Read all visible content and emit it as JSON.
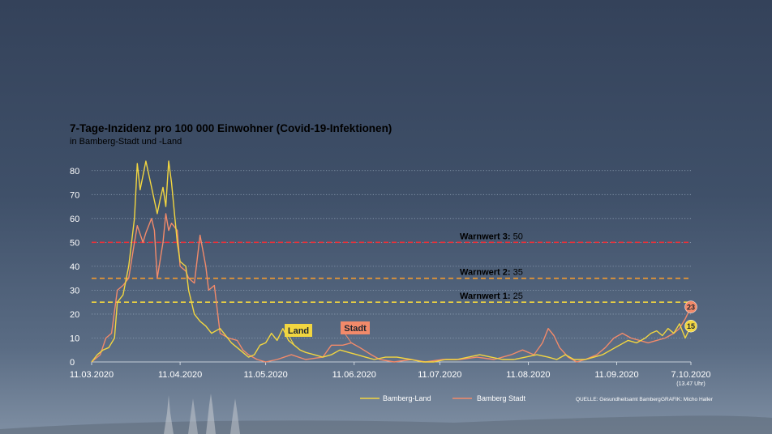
{
  "colors": {
    "land": "#f2d640",
    "stadt": "#f28a6a",
    "warn3": "#e8323a",
    "warn2": "#f29a2e",
    "warn1": "#f2d640",
    "grid": "#9fb0c4"
  },
  "chart_data": {
    "type": "line",
    "title": "7-Tage-Inzidenz pro 100 000 Einwohner (Covid-19-Infektionen)",
    "subtitle": "in Bamberg-Stadt und -Land",
    "ylim": [
      0,
      85
    ],
    "yticks": [
      0,
      10,
      20,
      30,
      40,
      50,
      60,
      70,
      80
    ],
    "xlim": [
      "2020-03-11",
      "2020-10-07"
    ],
    "xticks": [
      {
        "date": "2020-03-11",
        "label": "11.03.2020"
      },
      {
        "date": "2020-04-11",
        "label": "11.04.2020"
      },
      {
        "date": "2020-05-11",
        "label": "11.05.2020"
      },
      {
        "date": "2020-06-11",
        "label": "11.06.2020"
      },
      {
        "date": "2020-07-11",
        "label": "11.07.2020"
      },
      {
        "date": "2020-08-11",
        "label": "11.08.2020"
      },
      {
        "date": "2020-09-11",
        "label": "11.09.2020"
      },
      {
        "date": "2020-10-07",
        "label": "7.10.2020"
      }
    ],
    "last_tick_note": "(13.47 Uhr)",
    "grid": "horizontal dotted",
    "thresholds": [
      {
        "name": "Warnwert 3:",
        "value": 50,
        "label_value": "50",
        "color": "#e8323a"
      },
      {
        "name": "Warnwert 2:",
        "value": 35,
        "label_value": "35",
        "color": "#f29a2e"
      },
      {
        "name": "Warnwert 1:",
        "value": 25,
        "label_value": "25",
        "color": "#f2d640"
      }
    ],
    "legend_position": "bottom-right",
    "series": [
      {
        "name": "Bamberg-Land",
        "inline_label": "Land",
        "end_label": "15",
        "color": "#f2d640",
        "points": [
          [
            "2020-03-11",
            0
          ],
          [
            "2020-03-13",
            3
          ],
          [
            "2020-03-15",
            5
          ],
          [
            "2020-03-17",
            6
          ],
          [
            "2020-03-19",
            10
          ],
          [
            "2020-03-20",
            25
          ],
          [
            "2020-03-22",
            28
          ],
          [
            "2020-03-24",
            40
          ],
          [
            "2020-03-26",
            60
          ],
          [
            "2020-03-27",
            83
          ],
          [
            "2020-03-28",
            72
          ],
          [
            "2020-03-30",
            84
          ],
          [
            "2020-04-01",
            73
          ],
          [
            "2020-04-03",
            62
          ],
          [
            "2020-04-04",
            68
          ],
          [
            "2020-04-05",
            73
          ],
          [
            "2020-04-06",
            65
          ],
          [
            "2020-04-07",
            84
          ],
          [
            "2020-04-08",
            75
          ],
          [
            "2020-04-10",
            50
          ],
          [
            "2020-04-11",
            42
          ],
          [
            "2020-04-13",
            40
          ],
          [
            "2020-04-14",
            30
          ],
          [
            "2020-04-16",
            20
          ],
          [
            "2020-04-18",
            17
          ],
          [
            "2020-04-20",
            15
          ],
          [
            "2020-04-22",
            12
          ],
          [
            "2020-04-25",
            14
          ],
          [
            "2020-04-27",
            11
          ],
          [
            "2020-04-29",
            8
          ],
          [
            "2020-05-01",
            6
          ],
          [
            "2020-05-03",
            4
          ],
          [
            "2020-05-05",
            2
          ],
          [
            "2020-05-07",
            3
          ],
          [
            "2020-05-09",
            7
          ],
          [
            "2020-05-11",
            8
          ],
          [
            "2020-05-13",
            12
          ],
          [
            "2020-05-15",
            9
          ],
          [
            "2020-05-17",
            14
          ],
          [
            "2020-05-19",
            9
          ],
          [
            "2020-05-21",
            7
          ],
          [
            "2020-05-23",
            5
          ],
          [
            "2020-05-25",
            4
          ],
          [
            "2020-05-28",
            3
          ],
          [
            "2020-05-31",
            2
          ],
          [
            "2020-06-03",
            3
          ],
          [
            "2020-06-06",
            5
          ],
          [
            "2020-06-09",
            4
          ],
          [
            "2020-06-12",
            3
          ],
          [
            "2020-06-15",
            2
          ],
          [
            "2020-06-18",
            1
          ],
          [
            "2020-06-22",
            2
          ],
          [
            "2020-06-26",
            2
          ],
          [
            "2020-07-01",
            1
          ],
          [
            "2020-07-05",
            0
          ],
          [
            "2020-07-09",
            0
          ],
          [
            "2020-07-13",
            1
          ],
          [
            "2020-07-17",
            1
          ],
          [
            "2020-07-21",
            2
          ],
          [
            "2020-07-25",
            3
          ],
          [
            "2020-07-29",
            2
          ],
          [
            "2020-08-02",
            1
          ],
          [
            "2020-08-06",
            1
          ],
          [
            "2020-08-10",
            2
          ],
          [
            "2020-08-14",
            3
          ],
          [
            "2020-08-18",
            2
          ],
          [
            "2020-08-21",
            1
          ],
          [
            "2020-08-24",
            3
          ],
          [
            "2020-08-27",
            1
          ],
          [
            "2020-08-31",
            1
          ],
          [
            "2020-09-03",
            2
          ],
          [
            "2020-09-06",
            3
          ],
          [
            "2020-09-09",
            5
          ],
          [
            "2020-09-12",
            7
          ],
          [
            "2020-09-15",
            9
          ],
          [
            "2020-09-18",
            8
          ],
          [
            "2020-09-21",
            10
          ],
          [
            "2020-09-23",
            12
          ],
          [
            "2020-09-25",
            13
          ],
          [
            "2020-09-27",
            11
          ],
          [
            "2020-09-29",
            14
          ],
          [
            "2020-10-01",
            12
          ],
          [
            "2020-10-03",
            16
          ],
          [
            "2020-10-05",
            10
          ],
          [
            "2020-10-07",
            15
          ]
        ]
      },
      {
        "name": "Bamberg Stadt",
        "inline_label": "Stadt",
        "end_label": "23",
        "color": "#f28a6a",
        "points": [
          [
            "2020-03-11",
            0
          ],
          [
            "2020-03-14",
            3
          ],
          [
            "2020-03-16",
            10
          ],
          [
            "2020-03-18",
            12
          ],
          [
            "2020-03-20",
            30
          ],
          [
            "2020-03-22",
            32
          ],
          [
            "2020-03-24",
            35
          ],
          [
            "2020-03-26",
            50
          ],
          [
            "2020-03-27",
            57
          ],
          [
            "2020-03-29",
            50
          ],
          [
            "2020-03-30",
            54
          ],
          [
            "2020-04-01",
            60
          ],
          [
            "2020-04-02",
            55
          ],
          [
            "2020-04-03",
            35
          ],
          [
            "2020-04-05",
            50
          ],
          [
            "2020-04-06",
            62
          ],
          [
            "2020-04-07",
            55
          ],
          [
            "2020-04-08",
            58
          ],
          [
            "2020-04-10",
            55
          ],
          [
            "2020-04-11",
            40
          ],
          [
            "2020-04-13",
            38
          ],
          [
            "2020-04-14",
            35
          ],
          [
            "2020-04-16",
            33
          ],
          [
            "2020-04-18",
            53
          ],
          [
            "2020-04-20",
            40
          ],
          [
            "2020-04-21",
            30
          ],
          [
            "2020-04-23",
            32
          ],
          [
            "2020-04-25",
            12
          ],
          [
            "2020-04-28",
            10
          ],
          [
            "2020-05-01",
            9
          ],
          [
            "2020-05-03",
            5
          ],
          [
            "2020-05-05",
            3
          ],
          [
            "2020-05-08",
            1
          ],
          [
            "2020-05-11",
            0
          ],
          [
            "2020-05-15",
            1
          ],
          [
            "2020-05-20",
            3
          ],
          [
            "2020-05-25",
            1
          ],
          [
            "2020-05-31",
            2
          ],
          [
            "2020-06-03",
            7
          ],
          [
            "2020-06-07",
            7
          ],
          [
            "2020-06-10",
            8
          ],
          [
            "2020-06-13",
            6
          ],
          [
            "2020-06-17",
            3
          ],
          [
            "2020-06-20",
            1
          ],
          [
            "2020-06-25",
            0
          ],
          [
            "2020-07-01",
            1
          ],
          [
            "2020-07-06",
            0
          ],
          [
            "2020-07-12",
            1
          ],
          [
            "2020-07-18",
            1
          ],
          [
            "2020-07-24",
            2
          ],
          [
            "2020-07-30",
            1
          ],
          [
            "2020-08-05",
            3
          ],
          [
            "2020-08-09",
            5
          ],
          [
            "2020-08-11",
            4
          ],
          [
            "2020-08-13",
            3
          ],
          [
            "2020-08-16",
            8
          ],
          [
            "2020-08-18",
            14
          ],
          [
            "2020-08-20",
            11
          ],
          [
            "2020-08-22",
            6
          ],
          [
            "2020-08-25",
            2
          ],
          [
            "2020-08-28",
            0
          ],
          [
            "2020-08-31",
            1
          ],
          [
            "2020-09-04",
            3
          ],
          [
            "2020-09-07",
            6
          ],
          [
            "2020-09-10",
            10
          ],
          [
            "2020-09-13",
            12
          ],
          [
            "2020-09-16",
            10
          ],
          [
            "2020-09-19",
            9
          ],
          [
            "2020-09-22",
            8
          ],
          [
            "2020-09-25",
            9
          ],
          [
            "2020-09-28",
            10
          ],
          [
            "2020-10-01",
            12
          ],
          [
            "2020-10-03",
            14
          ],
          [
            "2020-10-05",
            18
          ],
          [
            "2020-10-07",
            23
          ]
        ]
      }
    ],
    "source": "QUELLE: Gesundheitsamt Bamberg",
    "credit": "GRAFIK: Micho Haller"
  }
}
